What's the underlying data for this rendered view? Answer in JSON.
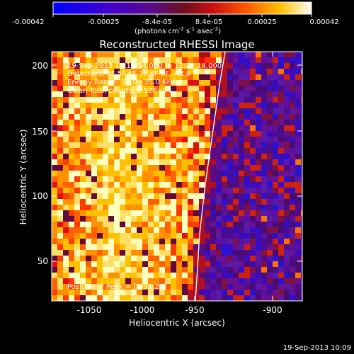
{
  "colorbar": {
    "tick_labels": [
      "-0.00042",
      "-0.00025",
      "-8.4e-05",
      "8.4e-05",
      "0.00025",
      "0.00042"
    ],
    "unit_label_main": "(photons cm",
    "unit_label_sup1": "-2",
    "unit_label_mid1": " s",
    "unit_label_sup2": "-1",
    "unit_label_mid2": " asec",
    "unit_label_sup3": "-2",
    "unit_label_end": ")"
  },
  "plot": {
    "title": "Reconstructed RHESSI Image",
    "xlabel": "Heliocentric X (arcsec)",
    "ylabel": "Heliocentric Y (arcsec)",
    "x_ticks": [
      "-1050",
      "-1000",
      "-950",
      "-900"
    ],
    "y_ticks": [
      "200",
      "150",
      "100",
      "50"
    ]
  },
  "info": {
    "time_range": "19-Sep-2013 12:18:14.000 to 12:24:14.000",
    "detectors": "Detectors: 3F 5F 6F 7F 8F 9F, Att 0",
    "energy": "Energy Range: 12.0 - 25.0 keV",
    "clean": "Clean     Total counts: 2.52E+04",
    "peak": "Position of Peak = [-991,24]"
  },
  "footer": {
    "timestamp": "19-Sep-2013 10:09"
  },
  "chart_data": {
    "type": "heatmap",
    "title": "Reconstructed RHESSI Image",
    "xlabel": "Heliocentric X (arcsec)",
    "ylabel": "Heliocentric Y (arcsec)",
    "xlim": [
      -1065,
      -873
    ],
    "ylim": [
      18,
      210
    ],
    "colorbar_range": [
      -0.00042,
      0.00042
    ],
    "peak_position": [
      -991,
      24
    ]
  }
}
